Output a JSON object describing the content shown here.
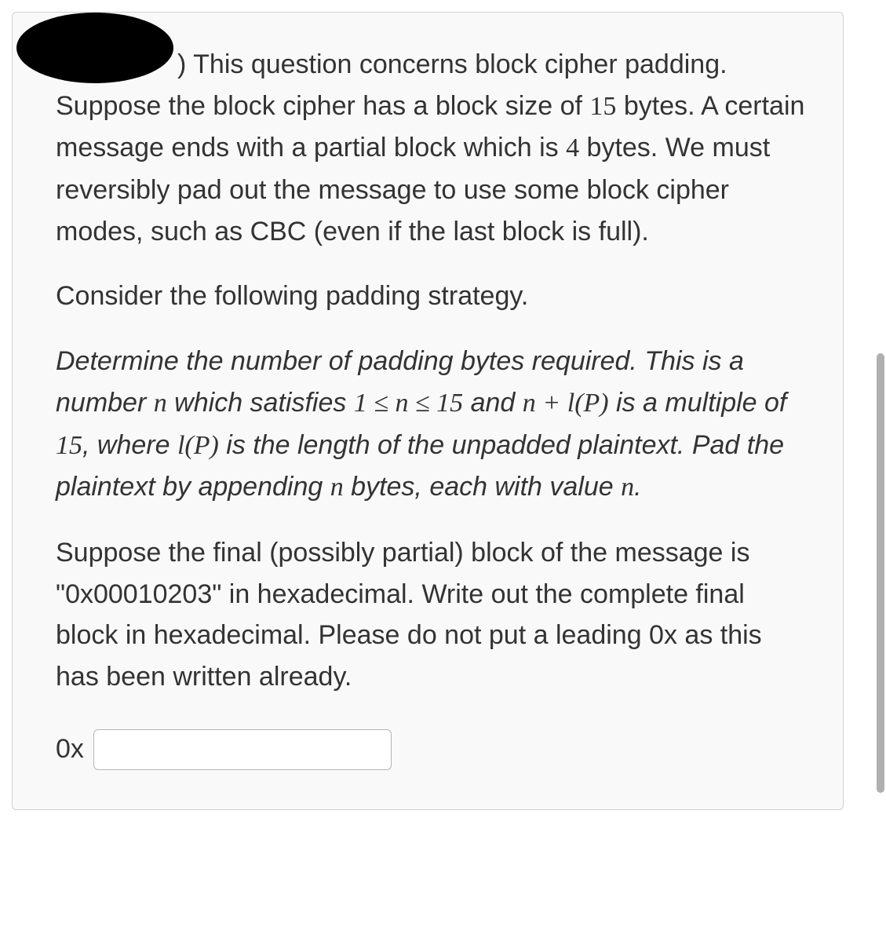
{
  "question": {
    "para1_part1": ") This question concerns block cipher padding. Suppose the block cipher has a block size of ",
    "para1_num1": "15",
    "para1_part2": " bytes. A certain message ends with a partial block which is ",
    "para1_num2": "4",
    "para1_part3": " bytes. We must reversibly pad out the message to use some block cipher modes, such as CBC (even if the last block is full).",
    "para2": "Consider the following padding strategy.",
    "para3_part1": "Determine the number of padding bytes required. This is a number ",
    "var_n": "n",
    "para3_part2": " which satisfies ",
    "ineq_left": "1 ≤ ",
    "ineq_right": " ≤ 15",
    "para3_part3": " and ",
    "expr_plus": " + ",
    "expr_lP": "l(P)",
    "para3_part4": " is a multiple of ",
    "para3_num15": "15",
    "para3_part5": ", where ",
    "para3_part6": " is the length of the unpadded plaintext. Pad the plaintext by appending ",
    "para3_part7": " bytes, each with value ",
    "para3_part8": ".",
    "para4": "Suppose the final (possibly partial) block of the message is \"0x00010203\" in hexadecimal. Write out the complete final block in hexadecimal. Please do not put a leading 0x as this has been written already.",
    "answer_prefix": "0x"
  },
  "styling": {
    "box_bg": "#f9f9f9",
    "box_border": "#d0d0d0",
    "text_color": "#333333",
    "body_fontsize": 34,
    "input_border": "#b5b5b5",
    "scrollbar_color": "#b0b0b0",
    "redacted_color": "#000000"
  }
}
